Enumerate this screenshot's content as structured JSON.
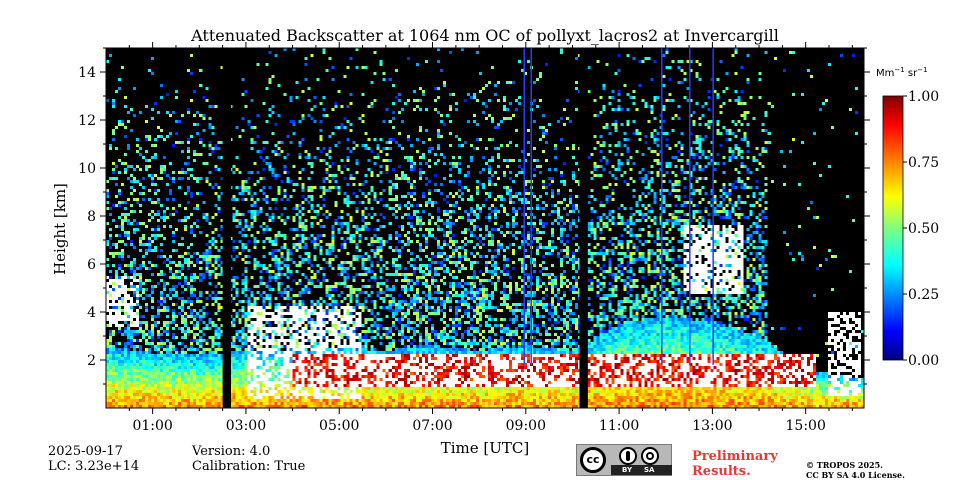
{
  "chart_data": {
    "type": "heatmap",
    "title": "Attenuated Backscatter at 1064 nm OC of pollyxt_lacros2 at Invercargill",
    "xlabel": "Time [UTC]",
    "ylabel": "Height [km]",
    "x_range_hours": [
      0.0,
      16.25
    ],
    "y_range_km": [
      0.0,
      15.0
    ],
    "x_ticks": [
      {
        "value": 1,
        "label": "01:00"
      },
      {
        "value": 3,
        "label": "03:00"
      },
      {
        "value": 5,
        "label": "05:00"
      },
      {
        "value": 7,
        "label": "07:00"
      },
      {
        "value": 9,
        "label": "09:00"
      },
      {
        "value": 11,
        "label": "11:00"
      },
      {
        "value": 13,
        "label": "13:00"
      },
      {
        "value": 15,
        "label": "15:00"
      }
    ],
    "y_ticks": [
      {
        "value": 2,
        "label": "2"
      },
      {
        "value": 4,
        "label": "4"
      },
      {
        "value": 6,
        "label": "6"
      },
      {
        "value": 8,
        "label": "8"
      },
      {
        "value": 10,
        "label": "10"
      },
      {
        "value": 12,
        "label": "12"
      },
      {
        "value": 14,
        "label": "14"
      }
    ],
    "colorbar": {
      "unit_base": "Mm",
      "unit_exp1": "−1",
      "unit_mid": " sr",
      "unit_exp2": "−1",
      "range": [
        0.0,
        1.0
      ],
      "ticks": [
        {
          "value": 0.0,
          "label": "0.00"
        },
        {
          "value": 0.25,
          "label": "0.25"
        },
        {
          "value": 0.5,
          "label": "0.50"
        },
        {
          "value": 0.75,
          "label": "0.75"
        },
        {
          "value": 1.0,
          "label": "1.00"
        }
      ],
      "colormap": "jet"
    },
    "data_gaps_hours": [
      [
        2.5,
        2.68
      ],
      [
        10.15,
        10.33
      ]
    ],
    "blue_streaks_hours": [
      8.95,
      9.1,
      11.9,
      12.5,
      13.0
    ],
    "features": {
      "boundary_layer_top_km": [
        [
          0.0,
          2.5
        ],
        [
          0.5,
          2.4
        ],
        [
          1.0,
          2.3
        ],
        [
          2.0,
          2.2
        ],
        [
          3.0,
          2.4
        ],
        [
          4.0,
          2.3
        ],
        [
          5.0,
          2.5
        ],
        [
          6.0,
          2.4
        ],
        [
          7.0,
          2.6
        ],
        [
          8.0,
          2.4
        ],
        [
          9.0,
          2.6
        ],
        [
          10.0,
          2.3
        ],
        [
          11.0,
          3.5
        ],
        [
          12.0,
          3.8
        ],
        [
          13.0,
          3.6
        ],
        [
          14.0,
          3.0
        ],
        [
          15.0,
          1.6
        ],
        [
          16.25,
          1.2
        ]
      ],
      "saturated_layer": {
        "start_hour": 4.0,
        "end_hour": 15.2,
        "base_km": 0.9,
        "top_km": 2.2
      },
      "low_clouds": [
        {
          "start_hour": 3.0,
          "end_hour": 5.5,
          "base_km": 0.4,
          "top_km": 4.2
        },
        {
          "start_hour": 0.0,
          "end_hour": 0.7,
          "base_km": 3.4,
          "top_km": 5.5
        },
        {
          "start_hour": 15.5,
          "end_hour": 16.2,
          "base_km": 0.5,
          "top_km": 4.0
        }
      ],
      "mid_clouds": [
        {
          "start_hour": 12.35,
          "end_hour": 13.7,
          "base_km": 4.8,
          "top_km": 7.6
        }
      ],
      "clear_air_start_hour": 14.2
    }
  },
  "footer": {
    "date": "2025-09-17",
    "lidar_constant": "LC: 3.23e+14",
    "version": "Version: 4.0",
    "calibration": "Calibration: True",
    "preliminary_line1": "Preliminary",
    "preliminary_line2": "Results.",
    "copyright_line1": "© TROPOS 2025.",
    "copyright_line2": "CC BY SA 4.0 License.",
    "cc_by": "BY",
    "cc_sa": "SA",
    "cc_badge_text": "cc",
    "colors": {
      "preliminary": "#e8382f"
    }
  }
}
